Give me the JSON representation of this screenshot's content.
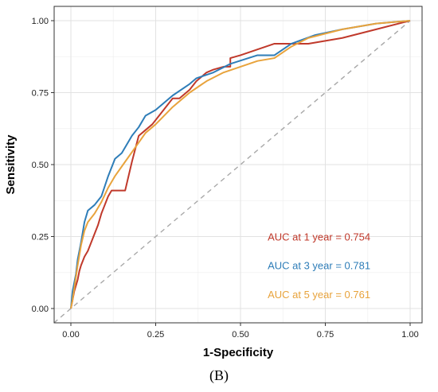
{
  "chart_data": {
    "type": "line",
    "title": "",
    "xlabel": "1-Specificity",
    "ylabel": "Sensitivity",
    "panel_label": "(B)",
    "xlim": [
      0,
      1
    ],
    "ylim": [
      0,
      1
    ],
    "x_ticks": [
      "0.00",
      "0.25",
      "0.50",
      "0.75",
      "1.00"
    ],
    "y_ticks": [
      "0.00",
      "0.25",
      "0.50",
      "0.75",
      "1.00"
    ],
    "grid": true,
    "reference_line": {
      "style": "dashed",
      "color": "#a8a8a8",
      "from": [
        0,
        0
      ],
      "to": [
        1,
        1
      ]
    },
    "series": [
      {
        "color": "#c0392b",
        "x": [
          0.0,
          0.005,
          0.01,
          0.02,
          0.025,
          0.03,
          0.04,
          0.05,
          0.06,
          0.07,
          0.08,
          0.09,
          0.1,
          0.11,
          0.12,
          0.13,
          0.15,
          0.16,
          0.18,
          0.2,
          0.22,
          0.24,
          0.26,
          0.28,
          0.3,
          0.32,
          0.35,
          0.37,
          0.4,
          0.42,
          0.45,
          0.47,
          0.47,
          0.5,
          0.55,
          0.6,
          0.65,
          0.7,
          0.8,
          0.9,
          1.0
        ],
        "y": [
          0.0,
          0.03,
          0.06,
          0.1,
          0.13,
          0.15,
          0.18,
          0.2,
          0.23,
          0.26,
          0.29,
          0.33,
          0.36,
          0.39,
          0.41,
          0.41,
          0.41,
          0.41,
          0.51,
          0.6,
          0.62,
          0.64,
          0.67,
          0.7,
          0.73,
          0.73,
          0.76,
          0.79,
          0.82,
          0.83,
          0.84,
          0.84,
          0.87,
          0.88,
          0.9,
          0.92,
          0.92,
          0.92,
          0.94,
          0.97,
          1.0
        ]
      },
      {
        "color": "#2e7db8",
        "x": [
          0.0,
          0.005,
          0.01,
          0.015,
          0.02,
          0.03,
          0.04,
          0.05,
          0.07,
          0.09,
          0.11,
          0.13,
          0.15,
          0.18,
          0.2,
          0.22,
          0.25,
          0.3,
          0.35,
          0.37,
          0.42,
          0.47,
          0.55,
          0.6,
          0.65,
          0.72,
          0.8,
          0.9,
          1.0
        ],
        "y": [
          0.0,
          0.06,
          0.09,
          0.12,
          0.17,
          0.23,
          0.3,
          0.34,
          0.36,
          0.39,
          0.46,
          0.52,
          0.54,
          0.6,
          0.63,
          0.67,
          0.69,
          0.74,
          0.78,
          0.8,
          0.82,
          0.85,
          0.88,
          0.88,
          0.92,
          0.95,
          0.97,
          0.99,
          1.0
        ]
      },
      {
        "color": "#e8a33c",
        "x": [
          0.0,
          0.005,
          0.01,
          0.02,
          0.03,
          0.04,
          0.05,
          0.07,
          0.09,
          0.11,
          0.13,
          0.16,
          0.19,
          0.22,
          0.25,
          0.3,
          0.35,
          0.4,
          0.45,
          0.5,
          0.55,
          0.6,
          0.65,
          0.7,
          0.8,
          0.9,
          1.0
        ],
        "y": [
          0.0,
          0.03,
          0.07,
          0.15,
          0.22,
          0.27,
          0.3,
          0.33,
          0.37,
          0.42,
          0.46,
          0.51,
          0.56,
          0.61,
          0.64,
          0.7,
          0.75,
          0.79,
          0.82,
          0.84,
          0.86,
          0.87,
          0.91,
          0.94,
          0.97,
          0.99,
          1.0
        ]
      }
    ],
    "annotations": [
      {
        "text": "AUC at 1 year = 0.754",
        "color": "#c0392b",
        "x": 0.58,
        "y": 0.25
      },
      {
        "text": "AUC at 3 year = 0.781",
        "color": "#2e7db8",
        "x": 0.58,
        "y": 0.15
      },
      {
        "text": "AUC at 5 year = 0.761",
        "color": "#e8a33c",
        "x": 0.58,
        "y": 0.05
      }
    ]
  }
}
